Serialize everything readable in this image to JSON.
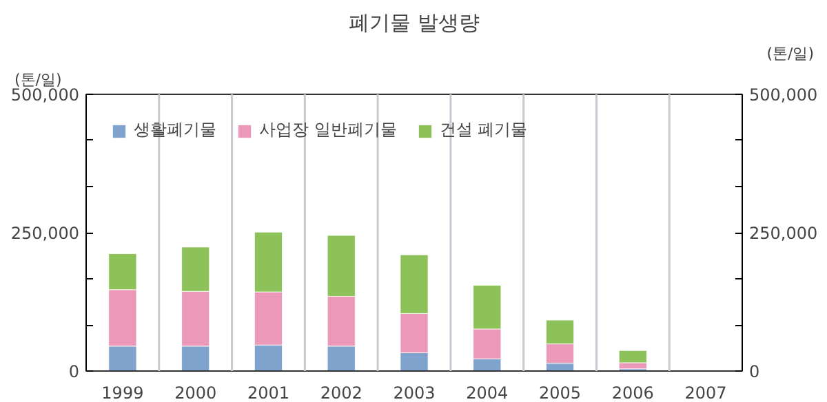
{
  "chart_data": {
    "type": "bar",
    "title": "폐기물 발생량",
    "ylabel": "(톤/일)",
    "y2label": "(톤/일)",
    "categories": [
      "1999",
      "2000",
      "2001",
      "2002",
      "2003",
      "2004",
      "2005",
      "2006",
      "2007"
    ],
    "stacked": true,
    "series": [
      {
        "name": "생활폐기물",
        "color": "#7fa3cc",
        "values": [
          45000,
          45000,
          47000,
          45000,
          33000,
          22000,
          14000,
          4000,
          null
        ]
      },
      {
        "name": "사업장 일반폐기물",
        "color": "#ec99b9",
        "values": [
          102000,
          99000,
          96000,
          90000,
          71000,
          54000,
          35000,
          11000,
          null
        ]
      },
      {
        "name": "건설 폐기물",
        "color": "#8dc25a",
        "values": [
          65000,
          80000,
          108000,
          110000,
          106000,
          79000,
          43000,
          22000,
          null
        ]
      }
    ],
    "ylim": [
      0,
      500000
    ],
    "yticks": [
      0,
      {
        "value": 83333,
        "label": null
      },
      {
        "value": 166667,
        "label": null
      },
      {
        "value": 250000,
        "label": "250,000"
      },
      {
        "value": 333333,
        "label": null
      },
      {
        "value": 416667,
        "label": null
      },
      {
        "value": 500000,
        "label": "500,000"
      }
    ],
    "y2lim": [
      0,
      500000
    ],
    "y2ticks": [
      0,
      {
        "value": 83333,
        "label": null
      },
      {
        "value": 166667,
        "label": null
      },
      {
        "value": 250000,
        "label": "250,000"
      },
      {
        "value": 333333,
        "label": null
      },
      {
        "value": 416667,
        "label": null
      },
      {
        "value": 500000,
        "label": "500,000"
      }
    ],
    "grid": "x",
    "legend": "top left"
  }
}
